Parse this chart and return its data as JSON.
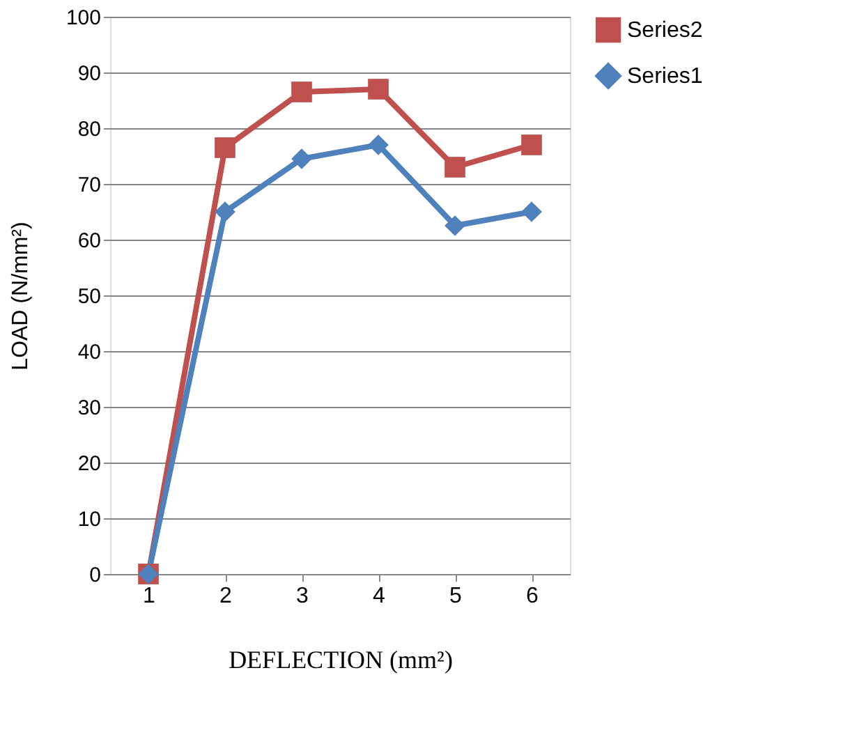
{
  "chart_data": {
    "type": "line",
    "xlabel": "DEFLECTION (mm²)",
    "ylabel": "LOAD (N/mm²)",
    "categories": [
      "1",
      "2",
      "3",
      "4",
      "5",
      "6"
    ],
    "series": [
      {
        "name": "Series2",
        "color": "#c0504d",
        "marker": "square",
        "values": [
          0,
          76.5,
          86.5,
          87,
          73,
          77
        ]
      },
      {
        "name": "Series1",
        "color": "#4f81bd",
        "marker": "diamond",
        "values": [
          0,
          65,
          74.5,
          77,
          62.5,
          65
        ]
      }
    ],
    "ylim": [
      0,
      100
    ],
    "yticks": [
      0,
      10,
      20,
      30,
      40,
      50,
      60,
      70,
      80,
      90,
      100
    ],
    "grid": "y",
    "legend": "right"
  }
}
